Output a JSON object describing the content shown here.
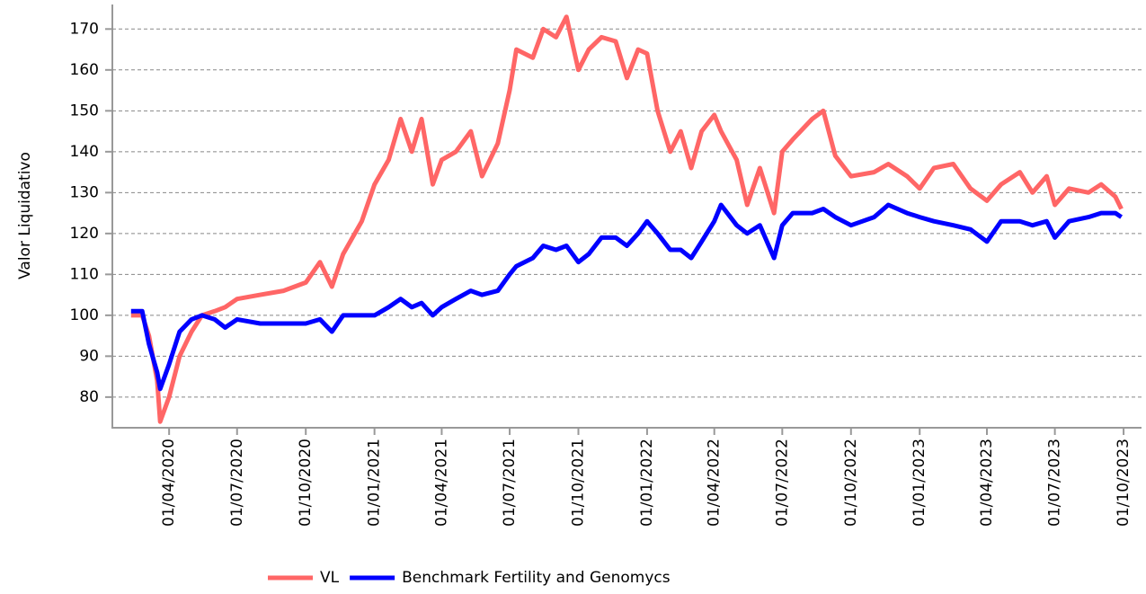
{
  "chart_data": {
    "type": "line",
    "y_label": "Valor Liquidativo",
    "x": [
      "2020-02-10",
      "2020-02-25",
      "2020-03-05",
      "2020-03-16",
      "2020-03-20",
      "2020-04-01",
      "2020-04-15",
      "2020-05-01",
      "2020-05-15",
      "2020-06-01",
      "2020-06-15",
      "2020-07-01",
      "2020-08-01",
      "2020-09-01",
      "2020-10-01",
      "2020-10-20",
      "2020-11-05",
      "2020-11-20",
      "2020-12-15",
      "2021-01-01",
      "2021-01-20",
      "2021-02-05",
      "2021-02-20",
      "2021-03-05",
      "2021-03-20",
      "2021-04-01",
      "2021-04-20",
      "2021-05-10",
      "2021-05-25",
      "2021-06-15",
      "2021-07-01",
      "2021-07-10",
      "2021-08-01",
      "2021-08-15",
      "2021-09-01",
      "2021-09-15",
      "2021-10-01",
      "2021-10-15",
      "2021-11-01",
      "2021-11-20",
      "2021-12-05",
      "2021-12-20",
      "2022-01-01",
      "2022-01-15",
      "2022-02-01",
      "2022-02-15",
      "2022-03-01",
      "2022-03-15",
      "2022-04-01",
      "2022-04-10",
      "2022-05-01",
      "2022-05-15",
      "2022-06-01",
      "2022-06-20",
      "2022-07-01",
      "2022-07-15",
      "2022-08-10",
      "2022-08-25",
      "2022-09-10",
      "2022-10-01",
      "2022-11-01",
      "2022-11-20",
      "2022-12-15",
      "2023-01-01",
      "2023-01-20",
      "2023-02-15",
      "2023-03-10",
      "2023-04-01",
      "2023-04-20",
      "2023-05-15",
      "2023-06-01",
      "2023-06-20",
      "2023-07-01",
      "2023-07-20",
      "2023-08-15",
      "2023-09-01",
      "2023-09-20",
      "2023-09-28"
    ],
    "series": [
      {
        "name": "VL",
        "color": "#ff6666",
        "values": [
          100,
          100,
          95,
          84,
          74,
          80,
          90,
          96,
          100,
          101,
          102,
          104,
          105,
          106,
          108,
          113,
          107,
          115,
          123,
          132,
          138,
          148,
          140,
          148,
          132,
          138,
          140,
          145,
          134,
          142,
          155,
          165,
          163,
          170,
          168,
          173,
          160,
          165,
          168,
          167,
          158,
          165,
          164,
          150,
          140,
          145,
          136,
          145,
          149,
          145,
          138,
          127,
          136,
          125,
          140,
          143,
          148,
          150,
          139,
          134,
          135,
          137,
          134,
          131,
          136,
          137,
          131,
          128,
          132,
          135,
          130,
          134,
          127,
          131,
          130,
          132,
          129,
          126
        ]
      },
      {
        "name": "Benchmark Fertility and Genomycs",
        "color": "#0000ff",
        "values": [
          101,
          101,
          93,
          86,
          82,
          88,
          96,
          99,
          100,
          99,
          97,
          99,
          98,
          98,
          98,
          99,
          96,
          100,
          100,
          100,
          102,
          104,
          102,
          103,
          100,
          102,
          104,
          106,
          105,
          106,
          110,
          112,
          114,
          117,
          116,
          117,
          113,
          115,
          119,
          119,
          117,
          120,
          123,
          120,
          116,
          116,
          114,
          118,
          123,
          127,
          122,
          120,
          122,
          114,
          122,
          125,
          125,
          126,
          124,
          122,
          124,
          127,
          125,
          124,
          123,
          122,
          121,
          118,
          123,
          123,
          122,
          123,
          119,
          123,
          124,
          125,
          125,
          124
        ]
      }
    ],
    "xlim": [
      "2020-01-16",
      "2023-10-25"
    ],
    "xticks": [
      {
        "value": "2020-04-01",
        "label": "01/04/2020"
      },
      {
        "value": "2020-07-01",
        "label": "01/07/2020"
      },
      {
        "value": "2020-10-01",
        "label": "01/10/2020"
      },
      {
        "value": "2021-01-01",
        "label": "01/01/2021"
      },
      {
        "value": "2021-04-01",
        "label": "01/04/2021"
      },
      {
        "value": "2021-07-01",
        "label": "01/07/2021"
      },
      {
        "value": "2021-10-01",
        "label": "01/10/2021"
      },
      {
        "value": "2022-01-01",
        "label": "01/01/2022"
      },
      {
        "value": "2022-04-01",
        "label": "01/04/2022"
      },
      {
        "value": "2022-07-01",
        "label": "01/07/2022"
      },
      {
        "value": "2022-10-01",
        "label": "01/10/2022"
      },
      {
        "value": "2023-01-01",
        "label": "01/01/2023"
      },
      {
        "value": "2023-04-01",
        "label": "01/04/2023"
      },
      {
        "value": "2023-07-01",
        "label": "01/07/2023"
      },
      {
        "value": "2023-10-01",
        "label": "01/10/2023"
      }
    ],
    "ylim": [
      72.5,
      176
    ],
    "yticks": [
      80,
      90,
      100,
      110,
      120,
      130,
      140,
      150,
      160,
      170
    ],
    "grid": true,
    "legend": "bottom"
  }
}
